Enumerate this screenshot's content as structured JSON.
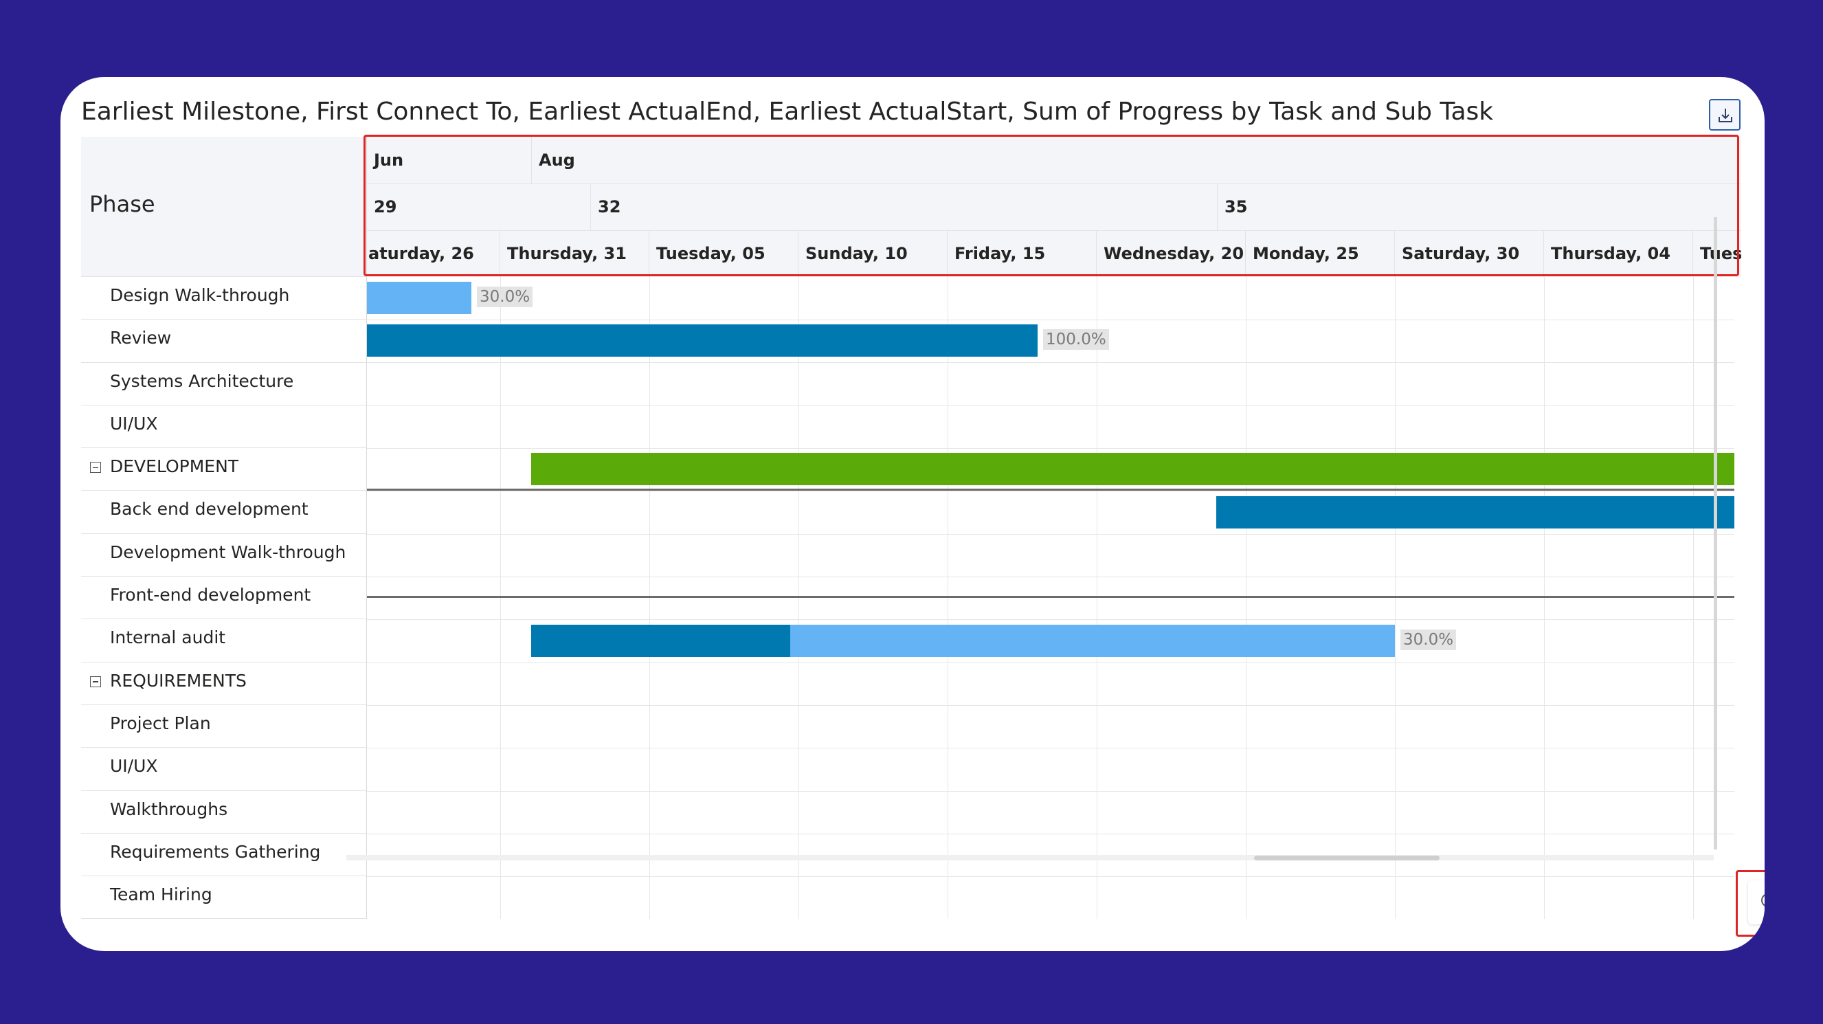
{
  "title": "Earliest Milestone, First Connect To, Earliest ActualEnd, Earliest ActualStart, Sum of Progress by Task and Sub Task",
  "left_header": "Phase",
  "header": {
    "months": [
      "Jun",
      "Aug"
    ],
    "weeks": [
      "29",
      "32",
      "35"
    ],
    "days": [
      "aturday, 26",
      "Thursday, 31",
      "Tuesday, 05",
      "Sunday, 10",
      "Friday, 15",
      "Wednesday, 20",
      "Monday, 25",
      "Saturday, 30",
      "Thursday, 04",
      "Tues"
    ]
  },
  "rows": [
    {
      "label": "Design Walk-through",
      "group": false
    },
    {
      "label": "Review",
      "group": false
    },
    {
      "label": "Systems Architecture",
      "group": false
    },
    {
      "label": "UI/UX",
      "group": false
    },
    {
      "label": "DEVELOPMENT",
      "group": true
    },
    {
      "label": "Back end development",
      "group": false
    },
    {
      "label": "Development Walk-through",
      "group": false
    },
    {
      "label": "Front-end development",
      "group": false
    },
    {
      "label": "Internal audit",
      "group": false
    },
    {
      "label": "REQUIREMENTS",
      "group": true
    },
    {
      "label": "Project Plan",
      "group": false
    },
    {
      "label": "UI/UX",
      "group": false
    },
    {
      "label": "Walkthroughs",
      "group": false
    },
    {
      "label": "Requirements Gathering",
      "group": false
    },
    {
      "label": "Team Hiring",
      "group": false
    }
  ],
  "bars": {
    "design_walkthrough_progress": 0.3,
    "design_walkthrough_label": "30.0%",
    "review_progress": 1.0,
    "review_label": "100.0%",
    "internal_audit_progress": 0.3,
    "internal_audit_label": "30.0%"
  },
  "colors": {
    "background": "#2b1f8f",
    "bar_dark": "#0078b0",
    "bar_light": "#63b3f5",
    "bar_group": "#5aaa0a",
    "highlight": "#e02424"
  },
  "icons": {
    "export": "export-icon",
    "zoom_in": "zoom-in-icon",
    "zoom_out": "zoom-out-icon",
    "collapse": "collapse-icon"
  }
}
